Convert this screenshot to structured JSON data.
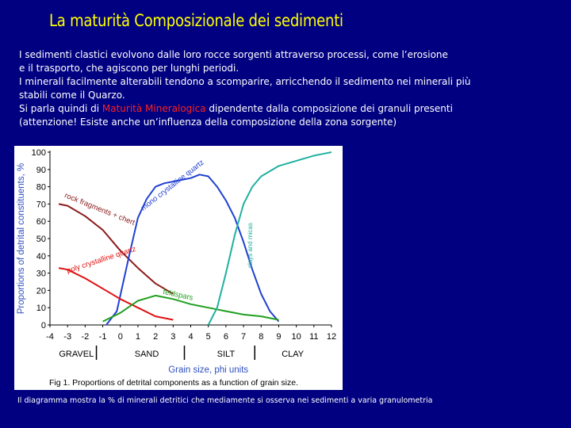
{
  "slide": {
    "title": "La maturità Composizionale dei sedimenti",
    "lines": {
      "l1": "I sedimenti clastici evolvono dalle loro rocce sorgenti attraverso processi, come l’erosione",
      "l2": "e il trasporto, che agiscono per lunghi periodi.",
      "l3": "I minerali facilmente alterabili tendono a scomparire, arricchendo il sedimento nei minerali più",
      "l4": "stabili come il Quarzo.",
      "l5_pre": "Si parla quindi di ",
      "l5_highlight": "Maturità Mineralogica",
      "l5_post": " dipendente dalla  composizione dei granuli presenti",
      "l6": "(attenzione! Esiste anche un’influenza della composizione della zona sorgente)"
    },
    "caption": "Il diagramma mostra la % di minerali detritici che mediamente si osserva nei sedimenti a varia granulometria",
    "highlight_color": "#ff2020"
  },
  "chart_data": {
    "type": "line",
    "ylabel": "Proportions of detrital constituents, %",
    "xlabel": "Grain size, phi units",
    "figure_caption": "Fig 1. Proportions of detrital components as a function of grain size.",
    "ylim": [
      0,
      100
    ],
    "y_ticks": [
      "0",
      "10",
      "20",
      "30",
      "40",
      "50",
      "60",
      "70",
      "80",
      "90",
      "100"
    ],
    "xlim": [
      -4,
      12
    ],
    "x_ticks": [
      "-4",
      "-3",
      "-2",
      "-1",
      "0",
      "1",
      "2",
      "3",
      "4",
      "5",
      "6",
      "7",
      "8",
      "9",
      "10",
      "11",
      "12"
    ],
    "size_classes": [
      "GRAVEL",
      "SAND",
      "SILT",
      "CLAY"
    ],
    "series": [
      {
        "name": "rock fragments + chert",
        "color": "#8b1a1a",
        "x": [
          -3.5,
          -3,
          -2,
          -1,
          0,
          1,
          2,
          3
        ],
        "y": [
          70,
          69,
          63,
          55,
          43,
          33,
          24,
          18
        ]
      },
      {
        "name": "mono crystalline quartz",
        "color": "#2040d0",
        "x": [
          -0.8,
          -0.2,
          0.5,
          1,
          1.5,
          2,
          2.5,
          3,
          3.5,
          4,
          4.5,
          5,
          5.5,
          6,
          6.5,
          7,
          7.5,
          8,
          8.5,
          9
        ],
        "y": [
          0,
          8,
          40,
          62,
          73,
          80,
          82,
          83,
          84,
          85,
          87,
          86,
          80,
          72,
          62,
          48,
          32,
          18,
          8,
          2
        ]
      },
      {
        "name": "poly crystalline quartz",
        "color": "#e01010",
        "x": [
          -3.5,
          -3,
          -2,
          -1,
          0,
          1,
          2,
          3
        ],
        "y": [
          33,
          32,
          27,
          21,
          15,
          10,
          5,
          3
        ]
      },
      {
        "name": "feldspars",
        "color": "#20a020",
        "x": [
          -1,
          0,
          1,
          2,
          3,
          4,
          5,
          6,
          7,
          8,
          9
        ],
        "y": [
          2,
          7,
          14,
          17,
          15,
          12,
          10,
          8,
          6,
          5,
          3
        ]
      },
      {
        "name": "clays and micas",
        "color": "#20b0a0",
        "x": [
          5,
          5.5,
          6,
          6.5,
          7,
          7.5,
          8,
          8.5,
          9,
          10,
          11,
          11.5,
          12
        ],
        "y": [
          0,
          10,
          30,
          52,
          70,
          80,
          86,
          89,
          92,
          95,
          98,
          99,
          100
        ]
      }
    ]
  }
}
